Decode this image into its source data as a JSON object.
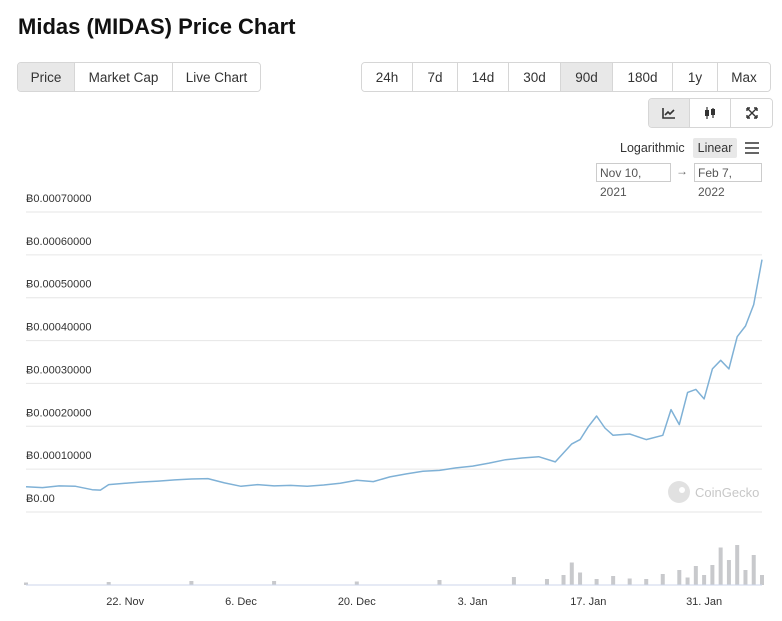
{
  "title": "Midas (MIDAS) Price Chart",
  "view_tabs": [
    {
      "label": "Price",
      "active": true
    },
    {
      "label": "Market Cap",
      "active": false
    },
    {
      "label": "Live Chart",
      "active": false
    }
  ],
  "range_tabs": [
    {
      "label": "24h",
      "active": false
    },
    {
      "label": "7d",
      "active": false
    },
    {
      "label": "14d",
      "active": false
    },
    {
      "label": "30d",
      "active": false
    },
    {
      "label": "90d",
      "active": true
    },
    {
      "label": "180d",
      "active": false
    },
    {
      "label": "1y",
      "active": false
    },
    {
      "label": "Max",
      "active": false
    }
  ],
  "tool_tabs": [
    {
      "icon": "line-chart-icon",
      "active": true
    },
    {
      "icon": "candlestick-icon",
      "active": false
    },
    {
      "icon": "expand-icon",
      "active": false
    }
  ],
  "scale": {
    "logarithmic_label": "Logarithmic",
    "linear_label": "Linear",
    "active": "linear"
  },
  "date_range": {
    "from": "Nov 10, 2021",
    "arrow": "→",
    "to": "Feb 7, 2022"
  },
  "watermark": {
    "text": "CoinGecko"
  },
  "colors": {
    "line": "#7fb1d6",
    "volume": "#c8c9cc",
    "grid": "#e6e6e6",
    "active_bg": "#e8e8e8"
  },
  "chart_data": {
    "type": "line",
    "y_tick_labels": [
      "Ƀ0.00",
      "Ƀ0.00010000",
      "Ƀ0.00020000",
      "Ƀ0.00030000",
      "Ƀ0.00040000",
      "Ƀ0.00050000",
      "Ƀ0.00060000",
      "Ƀ0.00070000"
    ],
    "y_ticks": [
      0,
      0.0001,
      0.0002,
      0.0003,
      0.0004,
      0.0005,
      0.0006,
      0.0007
    ],
    "ylim": [
      0,
      0.0007
    ],
    "x_range": [
      "2021-11-10",
      "2022-02-07"
    ],
    "x_tick_labels": [
      "22. Nov",
      "6. Dec",
      "20. Dec",
      "3. Jan",
      "17. Jan",
      "31. Jan"
    ],
    "x_ticks": [
      "2021-11-22",
      "2021-12-06",
      "2021-12-20",
      "2022-01-03",
      "2022-01-17",
      "2022-01-31"
    ],
    "grid": true,
    "series": [
      {
        "x": [
          "2021-11-10",
          "2021-11-12",
          "2021-11-14",
          "2021-11-16",
          "2021-11-18",
          "2021-11-19",
          "2021-11-20",
          "2021-11-22",
          "2021-11-24",
          "2021-11-26",
          "2021-11-28",
          "2021-11-30",
          "2021-12-02",
          "2021-12-04",
          "2021-12-06",
          "2021-12-08",
          "2021-12-10",
          "2021-12-12",
          "2021-12-14",
          "2021-12-16",
          "2021-12-18",
          "2021-12-20",
          "2021-12-22",
          "2021-12-24",
          "2021-12-26",
          "2021-12-28",
          "2021-12-30",
          "2022-01-01",
          "2022-01-03",
          "2022-01-05",
          "2022-01-07",
          "2022-01-09",
          "2022-01-11",
          "2022-01-13",
          "2022-01-15",
          "2022-01-16",
          "2022-01-17",
          "2022-01-18",
          "2022-01-19",
          "2022-01-20",
          "2022-01-22",
          "2022-01-24",
          "2022-01-26",
          "2022-01-27",
          "2022-01-28",
          "2022-01-29",
          "2022-01-30",
          "2022-01-31",
          "2022-02-01",
          "2022-02-02",
          "2022-02-03",
          "2022-02-04",
          "2022-02-05",
          "2022-02-06",
          "2022-02-07"
        ],
        "values": [
          4.5e-05,
          4.3e-05,
          4.7e-05,
          4.6e-05,
          3.8e-05,
          3.7e-05,
          5e-05,
          5.3e-05,
          5.6e-05,
          5.8e-05,
          6.1e-05,
          6.3e-05,
          6.4e-05,
          5.4e-05,
          4.6e-05,
          5e-05,
          4.7e-05,
          4.8e-05,
          4.6e-05,
          4.9e-05,
          5.3e-05,
          6e-05,
          5.7e-05,
          6.8e-05,
          7.5e-05,
          8.1e-05,
          8.3e-05,
          8.9e-05,
          9.3e-05,
          0.0001,
          0.000108,
          0.000112,
          0.000115,
          0.000103,
          0.000145,
          0.000155,
          0.000185,
          0.00021,
          0.000182,
          0.000165,
          0.000168,
          0.000155,
          0.000165,
          0.000225,
          0.00019,
          0.000265,
          0.000272,
          0.00025,
          0.00032,
          0.00034,
          0.00032,
          0.000395,
          0.00042,
          0.00047,
          0.000575
        ]
      }
    ],
    "volume": {
      "x": [
        "2021-11-10",
        "2021-11-20",
        "2021-11-30",
        "2021-12-10",
        "2021-12-20",
        "2021-12-30",
        "2022-01-08",
        "2022-01-12",
        "2022-01-14",
        "2022-01-15",
        "2022-01-16",
        "2022-01-18",
        "2022-01-20",
        "2022-01-22",
        "2022-01-24",
        "2022-01-26",
        "2022-01-28",
        "2022-01-29",
        "2022-01-30",
        "2022-01-31",
        "2022-02-01",
        "2022-02-02",
        "2022-02-03",
        "2022-02-04",
        "2022-02-05",
        "2022-02-06",
        "2022-02-07"
      ],
      "values": [
        0.5,
        0.6,
        0.8,
        0.8,
        0.7,
        1.0,
        1.6,
        1.2,
        2.0,
        4.5,
        2.5,
        1.2,
        1.8,
        1.3,
        1.2,
        2.2,
        3.0,
        1.5,
        3.8,
        2.0,
        4.0,
        7.5,
        5.0,
        8.0,
        3.0,
        6.0,
        2.0
      ]
    }
  }
}
